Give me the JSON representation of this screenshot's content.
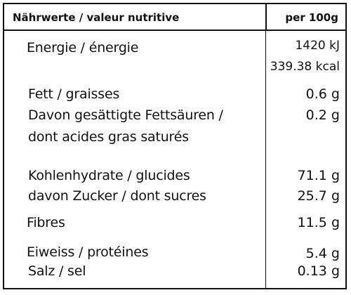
{
  "header": {
    "title": "Nährwerte / valeur nutritive",
    "unit": "per 100g"
  },
  "rows": {
    "energie": {
      "label": "Energie / énergie",
      "value_kj": "1420 kJ",
      "value_kcal": "339.38 kcal"
    },
    "fett": {
      "label": "Fett / graisses",
      "value": "0.6 g"
    },
    "gesaettigt": {
      "label_line1": "Davon gesättigte Fettsäuren /",
      "label_line2": "dont acides gras saturés",
      "value": "0.2 g"
    },
    "kohlenhydrate": {
      "label": "Kohlenhydrate / glucides",
      "value": "71.1 g"
    },
    "zucker": {
      "label": "davon Zucker / dont sucres",
      "value": "25.7 g"
    },
    "fibres": {
      "label": "Fibres",
      "value": "11.5 g"
    },
    "eiweiss": {
      "label": "Eiweiss / protéines",
      "value": "5.4 g"
    },
    "salz": {
      "label": "Salz / sel",
      "value": "0.13 g"
    }
  }
}
